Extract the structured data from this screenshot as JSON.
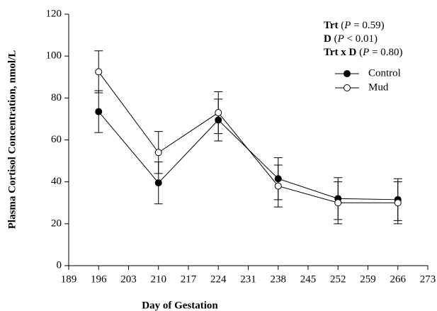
{
  "chart_data": {
    "type": "line",
    "xlabel": "Day of Gestation",
    "ylabel": "Plasma Cortisol Concentration, nmol/L",
    "x": [
      196,
      210,
      224,
      238,
      252,
      266
    ],
    "series": [
      {
        "name": "Control",
        "color": "#000000",
        "marker_fill": "#000000",
        "values": [
          73.5,
          39.5,
          69.5,
          41.5,
          32,
          31.5
        ],
        "errors": [
          10,
          10,
          10,
          10,
          10,
          10
        ]
      },
      {
        "name": "Mud",
        "color": "#000000",
        "marker_fill": "#ffffff",
        "values": [
          92.5,
          54,
          73,
          38,
          30,
          30
        ],
        "errors": [
          10,
          10,
          10,
          10,
          10,
          10
        ]
      }
    ],
    "xlim": [
      189,
      273
    ],
    "xticks": [
      189,
      196,
      203,
      210,
      217,
      224,
      231,
      238,
      245,
      252,
      259,
      266,
      273
    ],
    "ylim": [
      0,
      120
    ],
    "yticks": [
      0,
      20,
      40,
      60,
      80,
      100,
      120
    ],
    "grid": false,
    "legend": "upper right",
    "annotations": [
      [
        {
          "text": "Trt",
          "weight": "bold"
        },
        {
          "text": " ("
        },
        {
          "text": "P",
          "style": "italic"
        },
        {
          "text": " = 0.59)"
        }
      ],
      [
        {
          "text": "D",
          "weight": "bold"
        },
        {
          "text": " ("
        },
        {
          "text": "P",
          "style": "italic"
        },
        {
          "text": " < 0.01)"
        }
      ],
      [
        {
          "text": "Trt x D",
          "weight": "bold"
        },
        {
          "text": " ("
        },
        {
          "text": "P",
          "style": "italic"
        },
        {
          "text": " = 0.80)"
        }
      ]
    ]
  }
}
